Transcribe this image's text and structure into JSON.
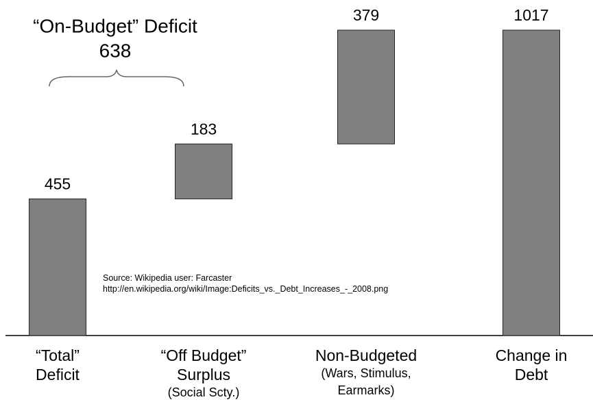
{
  "chart_data": {
    "type": "waterfall",
    "annotation": {
      "title": "“On-Budget” Deficit",
      "value": 638
    },
    "categories": [
      [
        "“Total”",
        "Deficit"
      ],
      [
        "“Off Budget”",
        "Surplus"
      ],
      [
        "Non-Budgeted"
      ],
      [
        "Change in",
        "Debt"
      ]
    ],
    "category_notes": [
      [],
      [
        "(Social Scty.)"
      ],
      [
        "(Wars, Stimulus,",
        "Earmarks)"
      ],
      []
    ],
    "values": [
      455,
      183,
      379,
      1017
    ],
    "last_is_total": true,
    "color": "#808080",
    "source": [
      "Source:  Wikipedia user: Farcaster",
      "http://en.wikipedia.org/wiki/Image:Deficits_vs._Debt_Increases_-_2008.png"
    ]
  }
}
